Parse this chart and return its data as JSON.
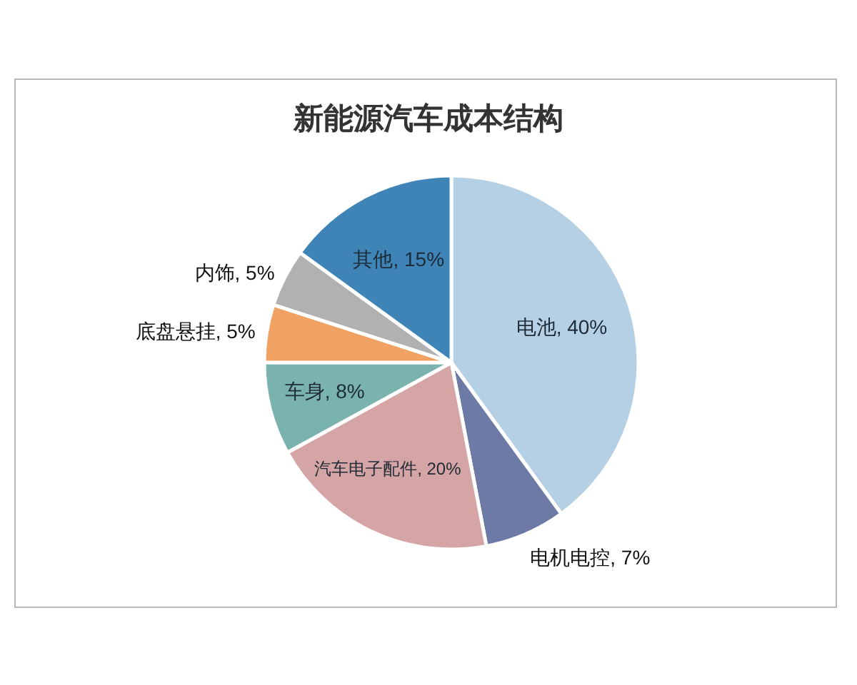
{
  "chart_data": {
    "type": "pie",
    "title": "新能源汽车成本结构",
    "categories": [
      "电池",
      "电机电控",
      "汽车电子配件",
      "车身",
      "底盘悬挂",
      "内饰",
      "其他"
    ],
    "values": [
      40,
      7,
      20,
      8,
      5,
      5,
      15
    ],
    "colors": [
      "#b5d0e4",
      "#6e7aa6",
      "#d5a4a4",
      "#7ab2ad",
      "#f1a262",
      "#b1b1b1",
      "#3f84b6"
    ],
    "value_labels": [
      "40%",
      "7%",
      "20%",
      "8%",
      "5%",
      "5%",
      "15%"
    ]
  }
}
